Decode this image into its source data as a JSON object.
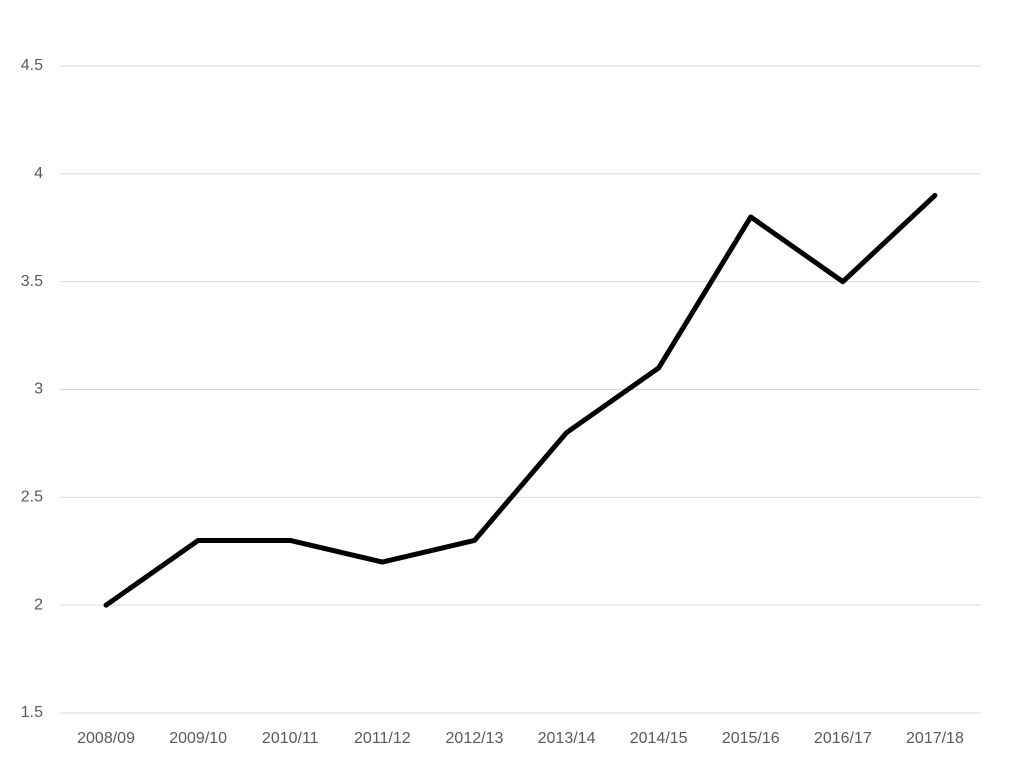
{
  "chart_data": {
    "type": "line",
    "categories": [
      "2008/09",
      "2009/10",
      "2010/11",
      "2011/12",
      "2012/13",
      "2013/14",
      "2014/15",
      "2015/16",
      "2016/17",
      "2017/18"
    ],
    "values": [
      2.0,
      2.3,
      2.3,
      2.2,
      2.3,
      2.8,
      3.1,
      3.8,
      3.5,
      3.9
    ],
    "color": "#000000",
    "ylim": [
      1.5,
      4.5
    ],
    "yticks": [
      1.5,
      2,
      2.5,
      3,
      3.5,
      4,
      4.5
    ],
    "grid": true
  }
}
